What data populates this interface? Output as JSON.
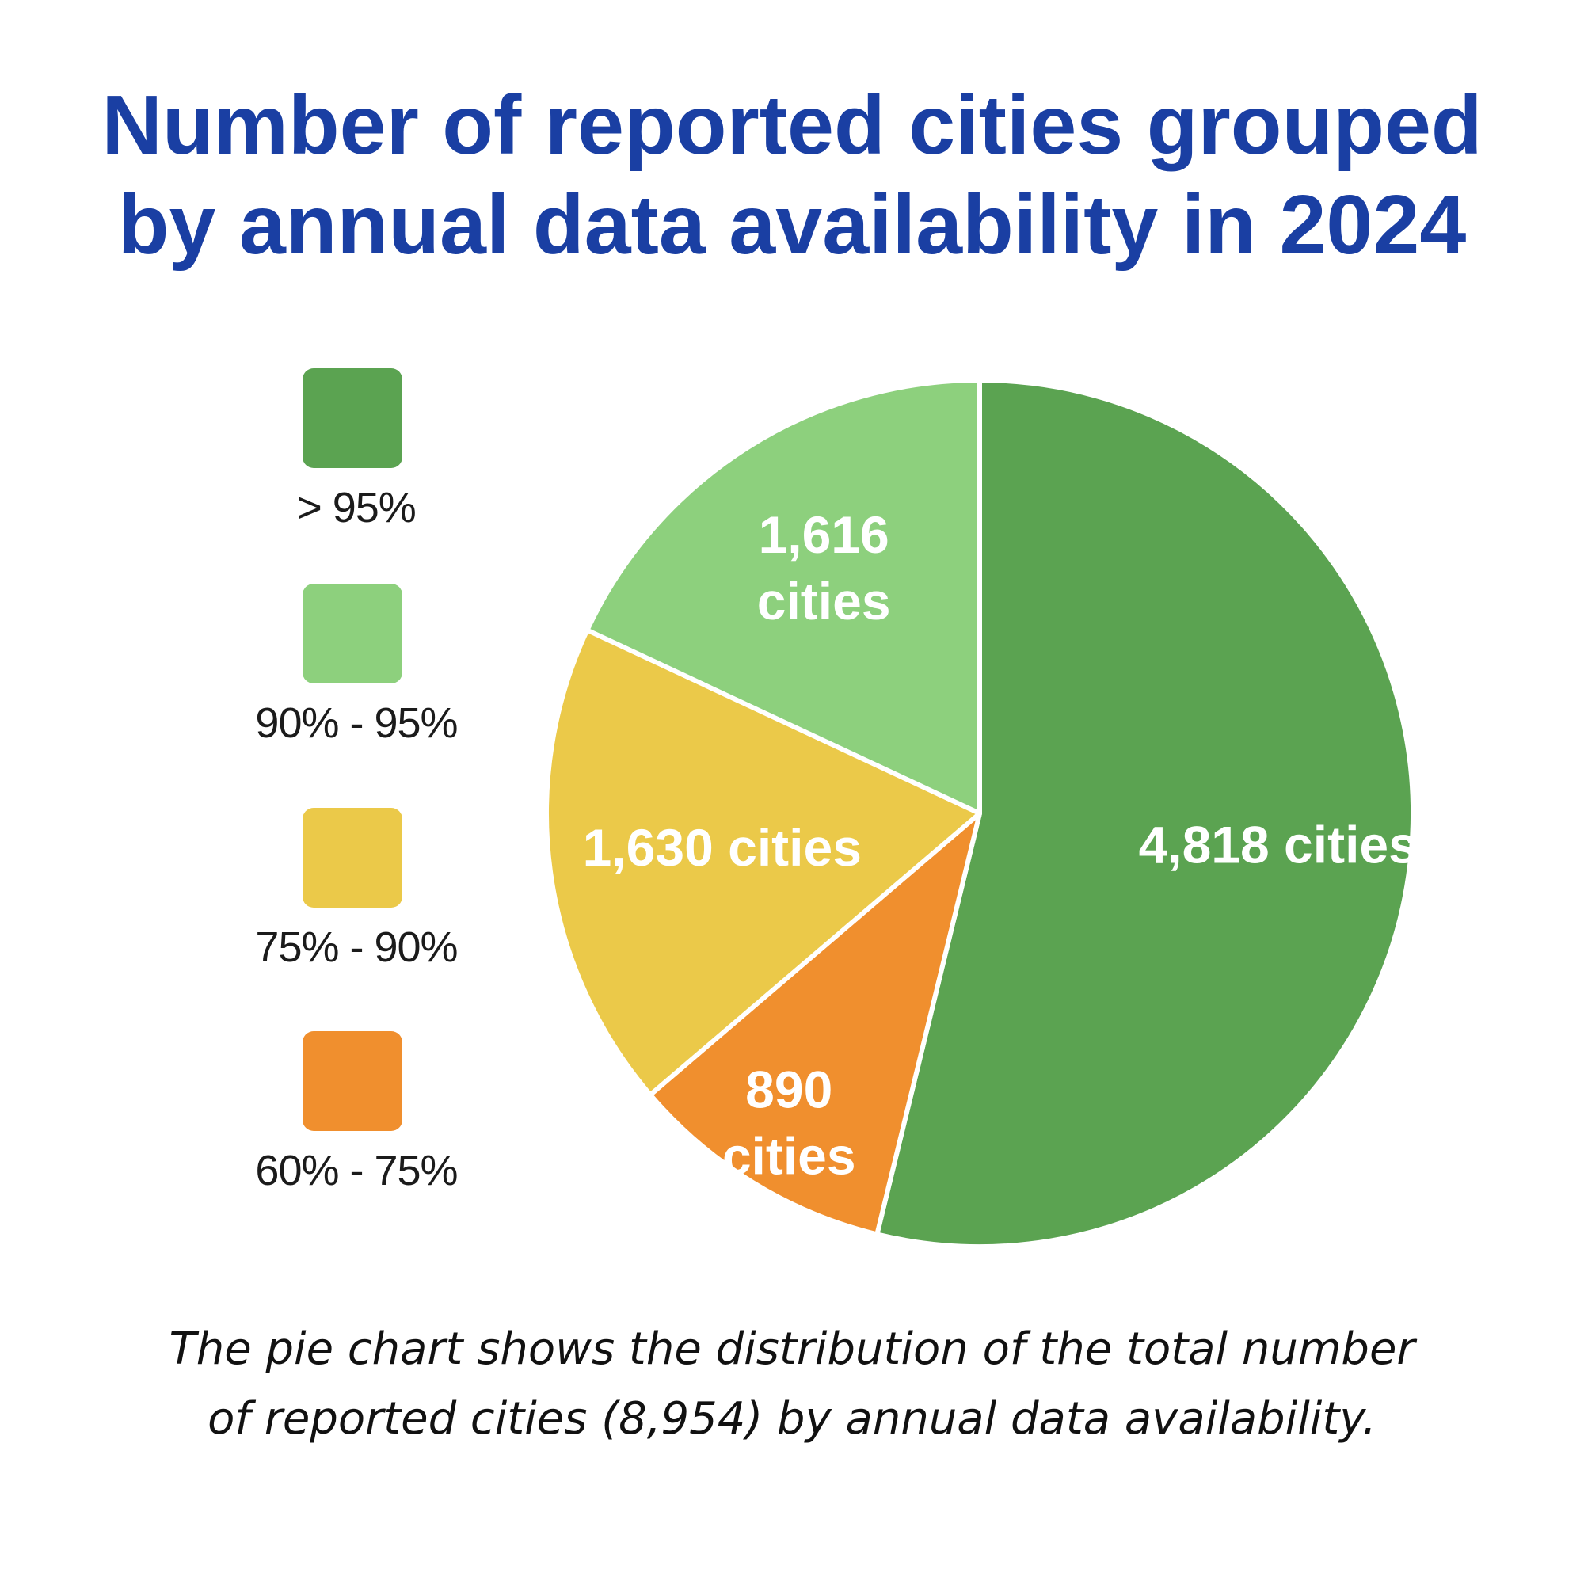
{
  "title": {
    "line1": "Number of reported cities grouped",
    "line2": "by annual data availability in 2024"
  },
  "caption": {
    "line1": "The pie chart shows the distribution of the total number",
    "line2": "of reported cities (8,954) by annual data availability."
  },
  "chart_data": {
    "type": "pie",
    "title": "Number of reported cities grouped by annual data availability in 2024",
    "total": 8954,
    "start": "12 o'clock, clockwise",
    "legend_position": "left",
    "slices": [
      {
        "category": "> 95%",
        "value": 4818,
        "label_lines": [
          "4,818 cities"
        ],
        "color": "#5ba351"
      },
      {
        "category": "60% - 75%",
        "value": 890,
        "label_lines": [
          "890",
          "cities"
        ],
        "color": "#f08f2e"
      },
      {
        "category": "75% - 90%",
        "value": 1630,
        "label_lines": [
          "1,630 cities"
        ],
        "color": "#ebc949"
      },
      {
        "category": "90% - 95%",
        "value": 1616,
        "label_lines": [
          "1,616",
          "cities"
        ],
        "color": "#8dd07d"
      }
    ],
    "legend": [
      {
        "label": "> 95%",
        "color": "#5ba351"
      },
      {
        "label": "90% - 95%",
        "color": "#8dd07d"
      },
      {
        "label": "75% - 90%",
        "color": "#ebc949"
      },
      {
        "label": "60% - 75%",
        "color": "#f08f2e"
      }
    ]
  }
}
